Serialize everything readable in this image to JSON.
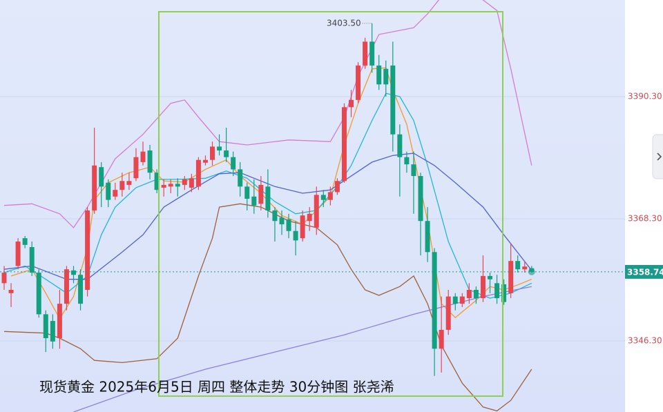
{
  "chart_data": {
    "type": "candlestick",
    "title": "现货黄金  2025年6月5日 周四 整体走势 30分钟图 张尧浠",
    "ylim": [
      3333.5,
      3407.7
    ],
    "yticks": [
      {
        "value": 3390.3,
        "label": "3390.30"
      },
      {
        "value": 3368.3,
        "label": "3368.30"
      },
      {
        "value": 3346.3,
        "label": "3346.30"
      }
    ],
    "grid": true,
    "up_color": "#e8464e",
    "down_color": "#12a07e",
    "open": [
      3356.7,
      3354.9,
      3359.8,
      3364.8,
      3363.2,
      3358.6,
      3351.1,
      3349.9,
      3346.8,
      3353.0,
      3359.0,
      3358.2,
      3355.5,
      3369.8,
      3377.6,
      3374.8,
      3372.3,
      3373.5,
      3374.4,
      3375.6,
      3378.5,
      3380.6,
      3376.6,
      3373.9,
      3374.1,
      3374.6,
      3374.4,
      3373.9,
      3374.1,
      3378.4,
      3378.9,
      3381.3,
      3380.6,
      3379.4,
      3377.2,
      3374.1,
      3372.3,
      3371.0,
      3374.1,
      3369.8,
      3368.5,
      3368.2,
      3366.1,
      3364.8,
      3367.9,
      3366.7,
      3372.6,
      3371.7,
      3373.1,
      3375.1,
      3388.4,
      3389.7,
      3395.9,
      3400.2,
      3395.9,
      3395.3,
      3395.9,
      3383.5,
      3379.4,
      3378.1,
      3376.0,
      3367.9,
      3362.3,
      3344.9,
      3348.3,
      3354.3,
      3353.0,
      3354.0,
      3355.5,
      3354.0,
      3358.0,
      3356.7,
      3356.5,
      3354.9,
      3360.7,
      3359.2,
      3359.4
    ],
    "close": [
      3358.6,
      3355.5,
      3364.2,
      3363.6,
      3358.6,
      3351.1,
      3346.8,
      3346.2,
      3353.0,
      3359.2,
      3358.2,
      3353.0,
      3369.8,
      3377.9,
      3374.1,
      3371.7,
      3373.5,
      3375.1,
      3375.1,
      3379.4,
      3380.4,
      3376.6,
      3373.5,
      3374.4,
      3374.6,
      3374.1,
      3375.4,
      3375.6,
      3378.9,
      3378.9,
      3381.3,
      3380.6,
      3379.4,
      3377.2,
      3374.1,
      3371.9,
      3370.7,
      3374.4,
      3369.8,
      3367.9,
      3367.3,
      3366.1,
      3364.4,
      3368.9,
      3369.2,
      3372.6,
      3371.7,
      3373.1,
      3375.1,
      3388.4,
      3389.7,
      3395.9,
      3400.2,
      3395.9,
      3392.5,
      3392.5,
      3383.5,
      3379.4,
      3378.1,
      3376.0,
      3367.9,
      3362.3,
      3344.9,
      3348.3,
      3354.3,
      3353.0,
      3354.3,
      3355.5,
      3354.0,
      3358.0,
      3357.4,
      3354.0,
      3353.3,
      3360.7,
      3359.2,
      3359.7,
      3358.74
    ],
    "high": [
      3359.8,
      3356.7,
      3364.8,
      3365.2,
      3364.2,
      3359.2,
      3351.8,
      3351.1,
      3355.5,
      3359.8,
      3359.8,
      3359.2,
      3370.4,
      3384.7,
      3378.5,
      3375.4,
      3374.8,
      3376.6,
      3376.6,
      3381.0,
      3382.2,
      3381.6,
      3377.2,
      3375.4,
      3375.4,
      3375.6,
      3376.0,
      3376.4,
      3379.4,
      3379.7,
      3382.2,
      3383.5,
      3384.7,
      3380.4,
      3378.5,
      3374.8,
      3375.4,
      3376.0,
      3377.2,
      3370.4,
      3369.8,
      3369.2,
      3367.9,
      3369.8,
      3370.4,
      3374.1,
      3373.5,
      3374.1,
      3375.6,
      3389.1,
      3391.5,
      3396.5,
      3400.9,
      3403.5,
      3397.8,
      3396.8,
      3400.2,
      3385.3,
      3380.4,
      3380.4,
      3376.6,
      3370.4,
      3363.0,
      3354.3,
      3355.5,
      3354.9,
      3354.9,
      3356.7,
      3356.1,
      3361.7,
      3358.6,
      3358.2,
      3357.4,
      3363.9,
      3361.7,
      3360.5,
      3359.8
    ],
    "low": [
      3355.5,
      3352.4,
      3359.2,
      3363.0,
      3358.0,
      3350.5,
      3344.3,
      3344.9,
      3344.9,
      3351.8,
      3356.7,
      3351.8,
      3354.3,
      3369.2,
      3370.4,
      3370.4,
      3371.7,
      3372.3,
      3373.5,
      3375.1,
      3377.9,
      3375.4,
      3372.9,
      3372.3,
      3372.9,
      3372.3,
      3373.5,
      3373.1,
      3373.5,
      3377.9,
      3377.9,
      3379.7,
      3378.5,
      3376.0,
      3372.3,
      3369.8,
      3369.2,
      3369.8,
      3368.5,
      3364.2,
      3365.4,
      3364.8,
      3361.7,
      3364.2,
      3366.1,
      3365.4,
      3370.4,
      3370.7,
      3372.6,
      3374.8,
      3386.6,
      3389.1,
      3395.3,
      3394.6,
      3391.5,
      3390.3,
      3380.4,
      3372.3,
      3376.6,
      3369.2,
      3361.7,
      3360.5,
      3340.0,
      3340.6,
      3347.4,
      3351.8,
      3352.4,
      3353.0,
      3353.0,
      3353.3,
      3354.9,
      3353.0,
      3352.8,
      3354.0,
      3358.6,
      3358.6,
      3358.6
    ],
    "series": [
      {
        "color": "#d77ad2",
        "x": [
          0,
          4,
          8,
          10,
          12,
          16,
          20,
          24,
          26,
          28,
          31,
          35,
          41,
          47,
          49,
          51,
          54,
          59,
          61,
          63,
          66,
          69,
          71,
          73,
          76
        ],
        "values": [
          3370.7,
          3371.0,
          3369.2,
          3366.7,
          3370.4,
          3379.1,
          3383.5,
          3389.1,
          3389.7,
          3386.6,
          3382.2,
          3381.6,
          3382.5,
          3382.2,
          3386.6,
          3394.0,
          3401.5,
          3402.7,
          3405.2,
          3408.3,
          3409.6,
          3407.7,
          3405.8,
          3395.3,
          3377.9
        ]
      },
      {
        "color": "#a0603a",
        "x": [
          0,
          6,
          8,
          11,
          13,
          17,
          22,
          25,
          28,
          30,
          31,
          34,
          37,
          41,
          45,
          48,
          50,
          52,
          54,
          57,
          59,
          61,
          63,
          66,
          69,
          71,
          73,
          76
        ],
        "values": [
          3348.0,
          3347.7,
          3346.8,
          3344.9,
          3342.8,
          3342.4,
          3343.1,
          3346.8,
          3358.0,
          3364.8,
          3370.4,
          3371.0,
          3370.4,
          3367.9,
          3366.7,
          3363.6,
          3359.2,
          3355.5,
          3354.5,
          3356.1,
          3358.0,
          3353.0,
          3345.5,
          3338.7,
          3334.4,
          3333.7,
          3335.6,
          3341.2
        ]
      },
      {
        "color": "#f39a2c",
        "x": [
          1,
          4,
          6,
          8,
          10,
          12,
          13,
          15,
          18,
          21,
          23,
          26,
          29,
          32,
          34,
          37,
          40,
          43,
          45,
          47,
          49,
          51,
          53,
          55,
          56,
          58,
          59,
          61,
          63,
          65,
          68,
          70,
          72,
          74,
          76
        ],
        "values": [
          3358.0,
          3359.2,
          3354.9,
          3350.3,
          3354.3,
          3363.0,
          3371.7,
          3374.8,
          3376.6,
          3377.6,
          3375.1,
          3374.9,
          3377.2,
          3378.9,
          3376.0,
          3372.9,
          3368.9,
          3367.3,
          3369.8,
          3372.3,
          3381.6,
          3389.1,
          3395.3,
          3395.5,
          3391.5,
          3385.3,
          3379.7,
          3367.9,
          3353.0,
          3350.5,
          3353.6,
          3356.1,
          3355.5,
          3356.4,
          3357.4
        ]
      },
      {
        "color": "#22b6d6",
        "x": [
          0,
          3,
          6,
          9,
          12,
          14,
          16,
          19,
          22,
          25,
          29,
          32,
          35,
          39,
          42,
          45,
          48,
          50,
          53,
          55,
          57,
          59,
          61,
          64,
          67,
          70,
          73,
          76
        ],
        "values": [
          3358.6,
          3359.8,
          3357.4,
          3354.9,
          3358.0,
          3365.4,
          3370.4,
          3373.9,
          3375.4,
          3375.4,
          3375.6,
          3376.9,
          3375.6,
          3371.4,
          3369.2,
          3369.8,
          3374.1,
          3377.9,
          3386.0,
          3390.9,
          3390.3,
          3386.0,
          3377.9,
          3364.2,
          3355.5,
          3354.0,
          3354.9,
          3356.7
        ]
      },
      {
        "color": "#5562d2",
        "x": [
          0,
          4,
          9,
          12,
          17,
          20,
          23,
          27,
          31,
          34,
          39,
          43,
          47,
          50,
          53,
          56,
          59,
          62,
          65,
          69,
          72,
          76
        ],
        "values": [
          3359.2,
          3359.8,
          3357.4,
          3357.4,
          3362.3,
          3365.4,
          3370.4,
          3373.5,
          3376.4,
          3376.6,
          3374.1,
          3372.9,
          3373.5,
          3376.0,
          3378.5,
          3379.7,
          3380.1,
          3377.9,
          3374.8,
          3370.4,
          3365.4,
          3359.0
        ]
      },
      {
        "color": "#8f7fe0",
        "x": [
          10,
          19,
          29,
          39,
          49,
          59,
          69,
          76
        ],
        "values": [
          3333.5,
          3337.5,
          3341.2,
          3344.3,
          3347.4,
          3351.1,
          3354.3,
          3356.1
        ]
      }
    ],
    "annotations": [
      {
        "label": "3403.50",
        "value": 3403.5
      }
    ],
    "last_price": {
      "label": "3358.74",
      "value": 3358.74,
      "color": "#1a9a8c"
    }
  }
}
